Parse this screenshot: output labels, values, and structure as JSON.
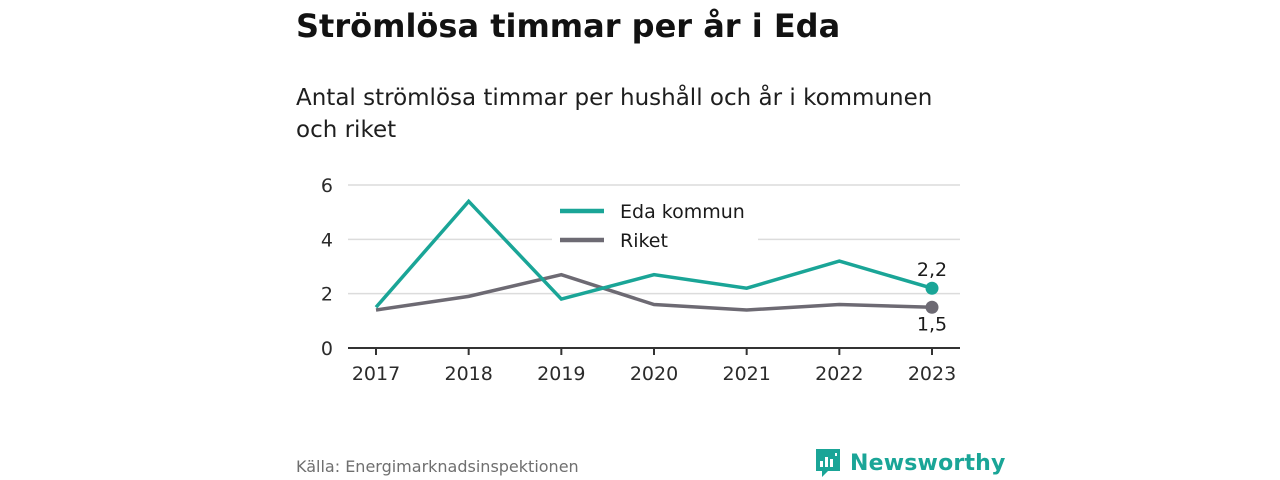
{
  "title": "Strömlösa timmar per år i Eda",
  "subtitle": "Antal strömlösa timmar per hushåll och år i kommunen och riket",
  "source": "Källa: Energimarknadsinspektionen",
  "brand": {
    "name": "Newsworthy",
    "icon": "newsworthy-logo-icon"
  },
  "colors": {
    "eda": "#1aa597",
    "riket": "#6d6a73",
    "grid": "#dcdcdc",
    "axis": "#333333"
  },
  "chart_data": {
    "type": "line",
    "title": "Strömlösa timmar per år i Eda",
    "subtitle": "Antal strömlösa timmar per hushåll och år i kommunen och riket",
    "xlabel": "",
    "ylabel": "",
    "x": [
      "2017",
      "2018",
      "2019",
      "2020",
      "2021",
      "2022",
      "2023"
    ],
    "yticks": [
      "0",
      "2",
      "4",
      "6"
    ],
    "ylim": [
      0,
      6
    ],
    "grid": true,
    "legend": "top-center",
    "series": [
      {
        "name": "Eda kommun",
        "values": [
          1.5,
          5.4,
          1.8,
          2.7,
          2.2,
          3.2,
          2.2
        ],
        "end_label": "2,2"
      },
      {
        "name": "Riket",
        "values": [
          1.4,
          1.9,
          2.7,
          1.6,
          1.4,
          1.6,
          1.5
        ],
        "end_label": "1,5"
      }
    ]
  }
}
